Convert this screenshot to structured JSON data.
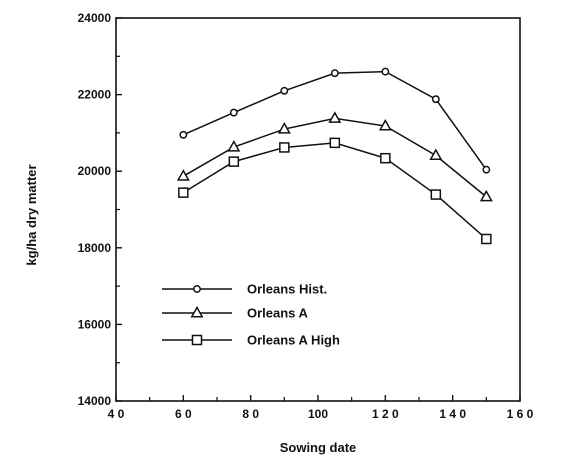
{
  "chart_data": {
    "type": "line",
    "xlabel": "Sowing date",
    "ylabel": "kg/ha dry matter",
    "xlim": [
      40,
      160
    ],
    "ylim": [
      14000,
      24000
    ],
    "x_ticks": [
      40,
      60,
      80,
      100,
      120,
      140,
      160
    ],
    "x_tick_labels": [
      "4 0",
      "6 0",
      "8 0",
      "100",
      "1 2 0",
      "1 4 0",
      "1 6 0"
    ],
    "y_ticks": [
      14000,
      16000,
      18000,
      20000,
      22000,
      24000
    ],
    "y_tick_labels": [
      "14000",
      "16000",
      "18000",
      "20000",
      "22000",
      "24000"
    ],
    "grid": false,
    "legend_position": "bottom-left",
    "x": [
      60,
      75,
      90,
      105,
      120,
      135,
      150
    ],
    "series": [
      {
        "name": "Orleans Hist.",
        "marker": "circle",
        "values": [
          20950,
          21530,
          22100,
          22560,
          22600,
          21880,
          20040
        ]
      },
      {
        "name": "Orleans A",
        "marker": "triangle",
        "values": [
          19870,
          20630,
          21100,
          21380,
          21180,
          20410,
          19330
        ]
      },
      {
        "name": "Orleans A High",
        "marker": "square",
        "values": [
          19440,
          20250,
          20620,
          20740,
          20340,
          19390,
          18230
        ]
      }
    ]
  }
}
